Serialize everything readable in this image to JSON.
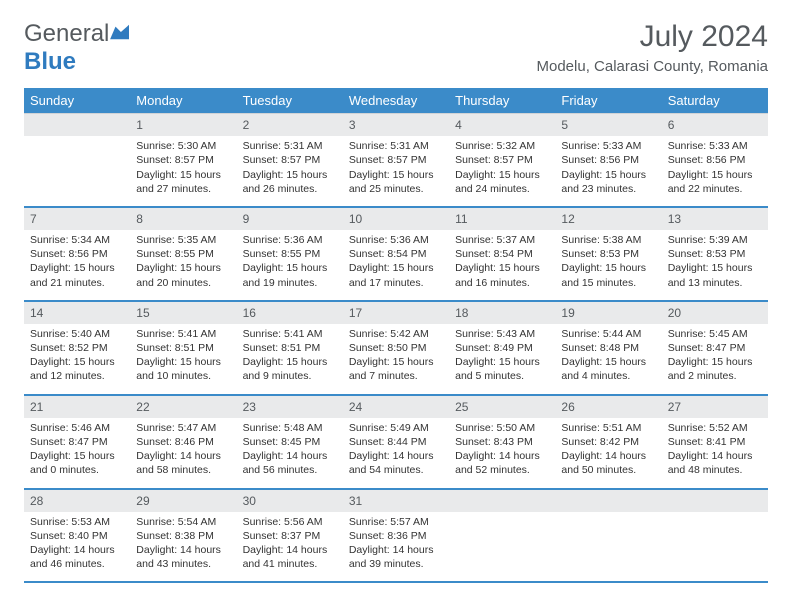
{
  "logo": {
    "general": "General",
    "blue": "Blue"
  },
  "title": "July 2024",
  "location": "Modelu, Calarasi County, Romania",
  "colors": {
    "header_bg": "#3b8bc9",
    "header_text": "#ffffff",
    "daynum_bg": "#e9eaeb",
    "logo_gray": "#555a5e",
    "logo_blue": "#2f7bbf",
    "divider": "#3b8bc9"
  },
  "days": [
    "Sunday",
    "Monday",
    "Tuesday",
    "Wednesday",
    "Thursday",
    "Friday",
    "Saturday"
  ],
  "weeks": [
    {
      "nums": [
        "",
        "1",
        "2",
        "3",
        "4",
        "5",
        "6"
      ],
      "cells": [
        "",
        "Sunrise: 5:30 AM\nSunset: 8:57 PM\nDaylight: 15 hours and 27 minutes.",
        "Sunrise: 5:31 AM\nSunset: 8:57 PM\nDaylight: 15 hours and 26 minutes.",
        "Sunrise: 5:31 AM\nSunset: 8:57 PM\nDaylight: 15 hours and 25 minutes.",
        "Sunrise: 5:32 AM\nSunset: 8:57 PM\nDaylight: 15 hours and 24 minutes.",
        "Sunrise: 5:33 AM\nSunset: 8:56 PM\nDaylight: 15 hours and 23 minutes.",
        "Sunrise: 5:33 AM\nSunset: 8:56 PM\nDaylight: 15 hours and 22 minutes."
      ]
    },
    {
      "nums": [
        "7",
        "8",
        "9",
        "10",
        "11",
        "12",
        "13"
      ],
      "cells": [
        "Sunrise: 5:34 AM\nSunset: 8:56 PM\nDaylight: 15 hours and 21 minutes.",
        "Sunrise: 5:35 AM\nSunset: 8:55 PM\nDaylight: 15 hours and 20 minutes.",
        "Sunrise: 5:36 AM\nSunset: 8:55 PM\nDaylight: 15 hours and 19 minutes.",
        "Sunrise: 5:36 AM\nSunset: 8:54 PM\nDaylight: 15 hours and 17 minutes.",
        "Sunrise: 5:37 AM\nSunset: 8:54 PM\nDaylight: 15 hours and 16 minutes.",
        "Sunrise: 5:38 AM\nSunset: 8:53 PM\nDaylight: 15 hours and 15 minutes.",
        "Sunrise: 5:39 AM\nSunset: 8:53 PM\nDaylight: 15 hours and 13 minutes."
      ]
    },
    {
      "nums": [
        "14",
        "15",
        "16",
        "17",
        "18",
        "19",
        "20"
      ],
      "cells": [
        "Sunrise: 5:40 AM\nSunset: 8:52 PM\nDaylight: 15 hours and 12 minutes.",
        "Sunrise: 5:41 AM\nSunset: 8:51 PM\nDaylight: 15 hours and 10 minutes.",
        "Sunrise: 5:41 AM\nSunset: 8:51 PM\nDaylight: 15 hours and 9 minutes.",
        "Sunrise: 5:42 AM\nSunset: 8:50 PM\nDaylight: 15 hours and 7 minutes.",
        "Sunrise: 5:43 AM\nSunset: 8:49 PM\nDaylight: 15 hours and 5 minutes.",
        "Sunrise: 5:44 AM\nSunset: 8:48 PM\nDaylight: 15 hours and 4 minutes.",
        "Sunrise: 5:45 AM\nSunset: 8:47 PM\nDaylight: 15 hours and 2 minutes."
      ]
    },
    {
      "nums": [
        "21",
        "22",
        "23",
        "24",
        "25",
        "26",
        "27"
      ],
      "cells": [
        "Sunrise: 5:46 AM\nSunset: 8:47 PM\nDaylight: 15 hours and 0 minutes.",
        "Sunrise: 5:47 AM\nSunset: 8:46 PM\nDaylight: 14 hours and 58 minutes.",
        "Sunrise: 5:48 AM\nSunset: 8:45 PM\nDaylight: 14 hours and 56 minutes.",
        "Sunrise: 5:49 AM\nSunset: 8:44 PM\nDaylight: 14 hours and 54 minutes.",
        "Sunrise: 5:50 AM\nSunset: 8:43 PM\nDaylight: 14 hours and 52 minutes.",
        "Sunrise: 5:51 AM\nSunset: 8:42 PM\nDaylight: 14 hours and 50 minutes.",
        "Sunrise: 5:52 AM\nSunset: 8:41 PM\nDaylight: 14 hours and 48 minutes."
      ]
    },
    {
      "nums": [
        "28",
        "29",
        "30",
        "31",
        "",
        "",
        ""
      ],
      "cells": [
        "Sunrise: 5:53 AM\nSunset: 8:40 PM\nDaylight: 14 hours and 46 minutes.",
        "Sunrise: 5:54 AM\nSunset: 8:38 PM\nDaylight: 14 hours and 43 minutes.",
        "Sunrise: 5:56 AM\nSunset: 8:37 PM\nDaylight: 14 hours and 41 minutes.",
        "Sunrise: 5:57 AM\nSunset: 8:36 PM\nDaylight: 14 hours and 39 minutes.",
        "",
        "",
        ""
      ]
    }
  ]
}
